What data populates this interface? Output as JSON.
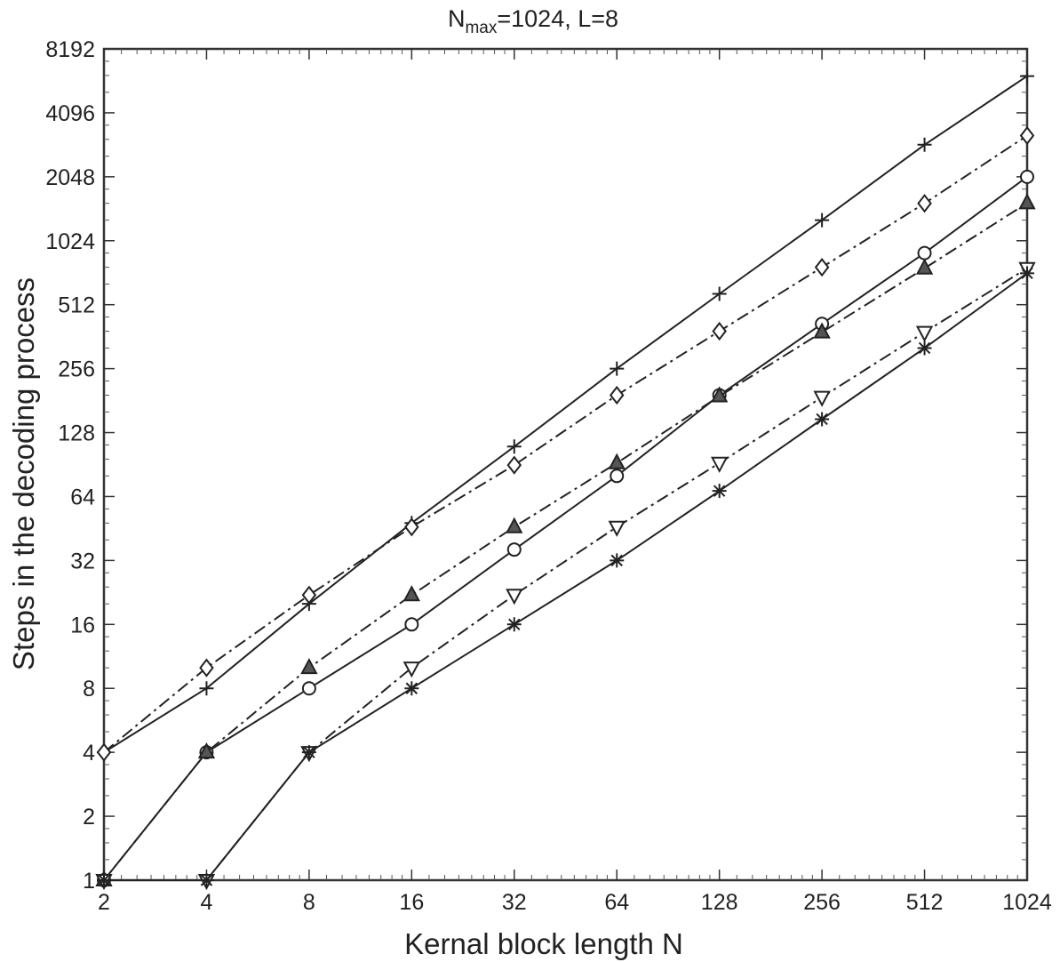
{
  "chart_data": {
    "type": "line",
    "title": "N",
    "title_sub": "max",
    "title_rest": "=1024, L=8",
    "xlabel": "Kernal block length N",
    "ylabel": "Steps in the decoding process",
    "xscale": "log2",
    "yscale": "log2",
    "xlim": [
      2,
      1024
    ],
    "ylim": [
      1,
      8192
    ],
    "x_ticks": [
      "2",
      "4",
      "8",
      "16",
      "32",
      "64",
      "128",
      "256",
      "512",
      "1024"
    ],
    "y_ticks": [
      "1",
      "2",
      "4",
      "8",
      "16",
      "32",
      "64",
      "128",
      "256",
      "512",
      "1024",
      "2048",
      "4096",
      "8192"
    ],
    "grid": false,
    "legend": "none",
    "x": [
      2,
      4,
      8,
      16,
      32,
      64,
      128,
      256,
      512,
      1024
    ],
    "series": [
      {
        "marker": "plus",
        "linestyle": "solid",
        "color": "#222222",
        "values": [
          4,
          8,
          20,
          48,
          110,
          256,
          576,
          1280,
          2900,
          6100
        ]
      },
      {
        "marker": "diamond",
        "linestyle": "dashdot",
        "color": "#222222",
        "values": [
          4,
          10,
          22,
          46,
          90,
          192,
          384,
          768,
          1536,
          3200
        ]
      },
      {
        "marker": "circle",
        "linestyle": "solid",
        "color": "#222222",
        "values": [
          1,
          4,
          8,
          16,
          36,
          80,
          192,
          416,
          896,
          2048
        ]
      },
      {
        "marker": "triangle-up",
        "linestyle": "dashdot",
        "color": "#222222",
        "values": [
          1,
          4,
          10,
          22,
          46,
          92,
          190,
          380,
          760,
          1540
        ]
      },
      {
        "marker": "triangle-down",
        "linestyle": "dashdot",
        "color": "#222222",
        "values": [
          1,
          1,
          4,
          10,
          22,
          46,
          92,
          188,
          380,
          760
        ]
      },
      {
        "marker": "asterisk",
        "linestyle": "solid",
        "color": "#222222",
        "values": [
          1,
          1,
          4,
          8,
          16,
          32,
          68,
          148,
          320,
          720
        ]
      }
    ]
  }
}
